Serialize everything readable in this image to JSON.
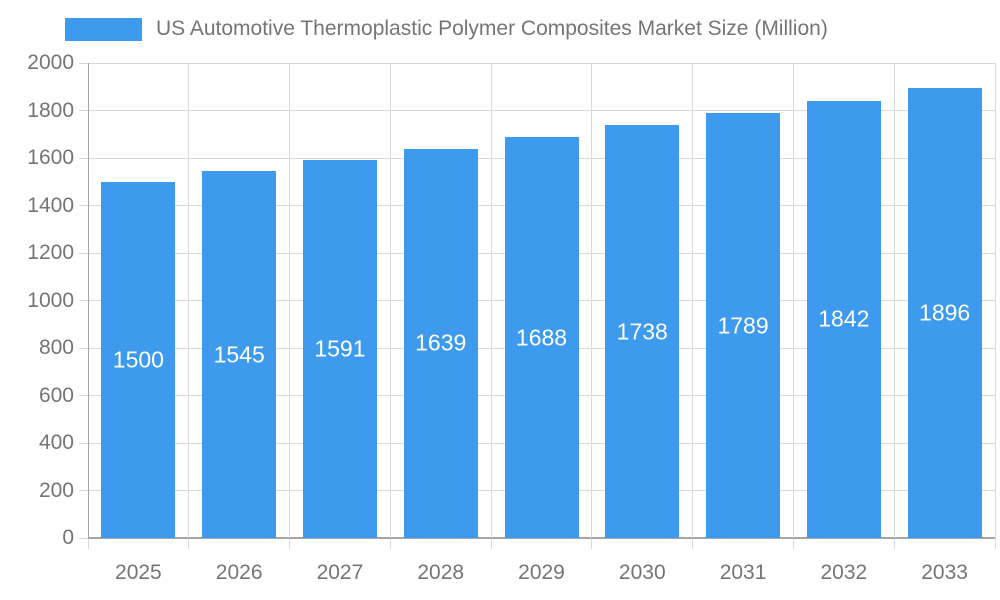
{
  "legend": {
    "label": "US Automotive Thermoplastic Polymer Composites Market Size (Million)"
  },
  "chart_data": {
    "type": "bar",
    "title": "US Automotive Thermoplastic Polymer Composites Market Size (Million)",
    "series_name": "US Automotive Thermoplastic Polymer Composites Market Size (Million)",
    "categories": [
      "2025",
      "2026",
      "2027",
      "2028",
      "2029",
      "2030",
      "2031",
      "2032",
      "2033"
    ],
    "values": [
      1500,
      1545,
      1591,
      1639,
      1688,
      1738,
      1789,
      1842,
      1896
    ],
    "xlabel": "",
    "ylabel": "",
    "ylim": [
      0,
      2000
    ],
    "ytick_step": 200,
    "grid": true,
    "legend_position": "top",
    "colors": {
      "bar": "#3D9AED",
      "value_label": "#FFFFFF",
      "axis_text": "#757575",
      "gridline": "#D9D9D9",
      "axis_line": "#A6A6A6",
      "background": "#FFFFFF"
    }
  }
}
